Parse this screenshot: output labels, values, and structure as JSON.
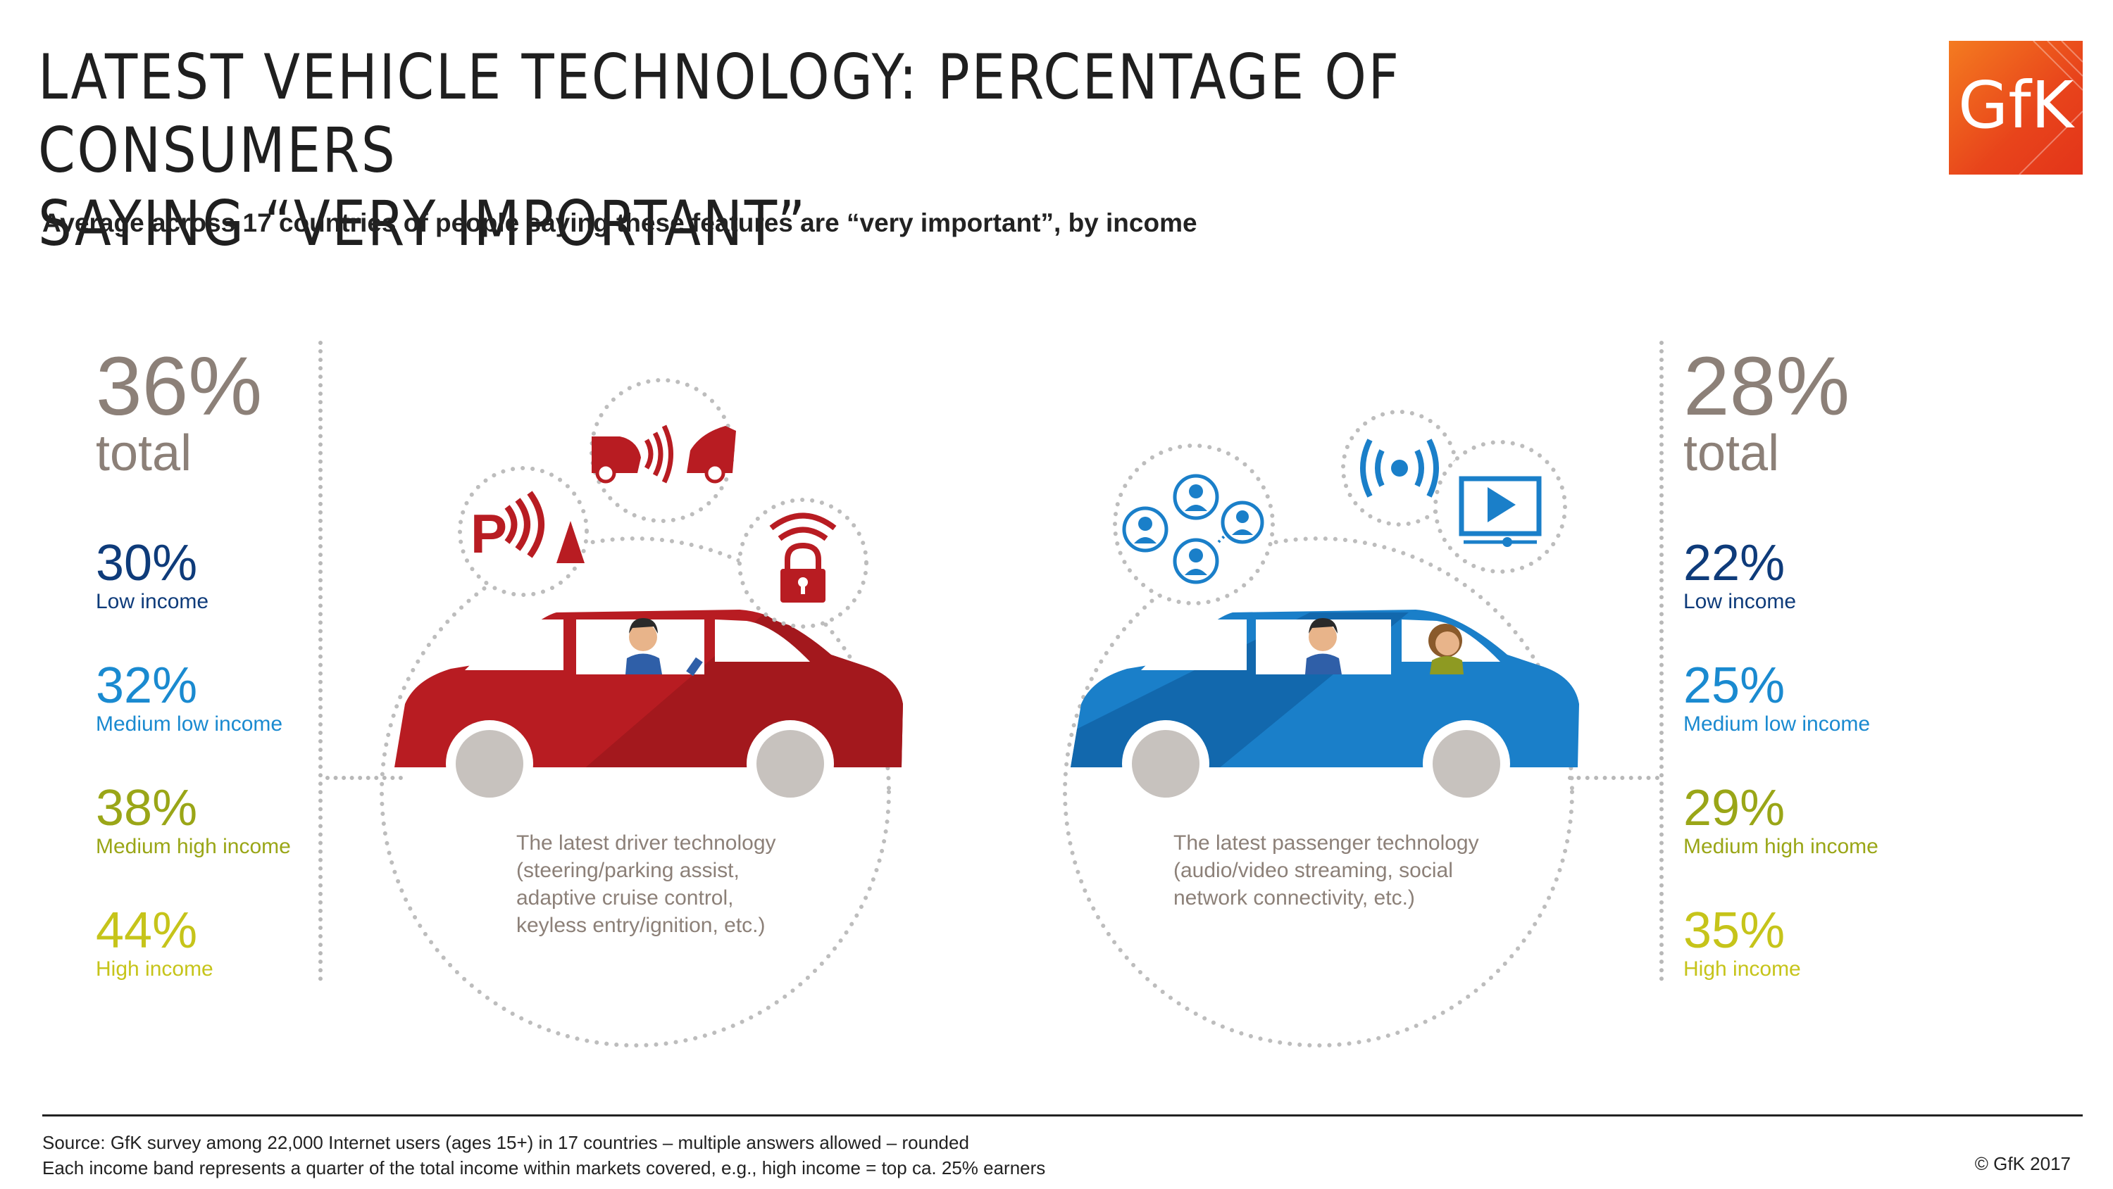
{
  "title_line1": "LATEST VEHICLE TECHNOLOGY: PERCENTAGE OF CONSUMERS",
  "title_line2": "SAYING “VERY IMPORTANT”",
  "subtitle": "Average across 17 countries of people saying these features are “very important”, by income",
  "logo": "GfK",
  "driver": {
    "total_value": "36%",
    "total_label": "total",
    "items": [
      {
        "value": "30%",
        "label": "Low income"
      },
      {
        "value": "32%",
        "label": "Medium low income"
      },
      {
        "value": "38%",
        "label": "Medium high income"
      },
      {
        "value": "44%",
        "label": "High income"
      }
    ],
    "description": [
      "The latest driver technology",
      "(steering/parking assist,",
      "adaptive cruise control,",
      "keyless entry/ignition, etc.)"
    ],
    "icons": [
      "parking-sensor-icon",
      "collision-warning-icon",
      "keyless-lock-icon"
    ],
    "car_color": "#b81c22"
  },
  "passenger": {
    "total_value": "28%",
    "total_label": "total",
    "items": [
      {
        "value": "22%",
        "label": "Low income"
      },
      {
        "value": "25%",
        "label": "Medium low income"
      },
      {
        "value": "29%",
        "label": "Medium high income"
      },
      {
        "value": "35%",
        "label": "High income"
      }
    ],
    "description": [
      "The latest passenger technology",
      "(audio/video streaming, social",
      "network connectivity, etc.)"
    ],
    "icons": [
      "social-network-icon",
      "wireless-signal-icon",
      "video-play-icon"
    ],
    "car_color": "#1a7fc9"
  },
  "source_line1": "Source: GfK survey among 22,000 Internet users (ages 15+) in 17 countries – multiple answers allowed – rounded",
  "source_line2": "Each income band represents a quarter of the total income within markets covered, e.g., high income =  top ca. 25% earners",
  "copyright": "© GfK 2017",
  "colors": {
    "low": "#0e3b7a",
    "medium_low": "#1a8ad0",
    "medium_high": "#9aa617",
    "high": "#c6c41a",
    "total": "#8c8078"
  }
}
